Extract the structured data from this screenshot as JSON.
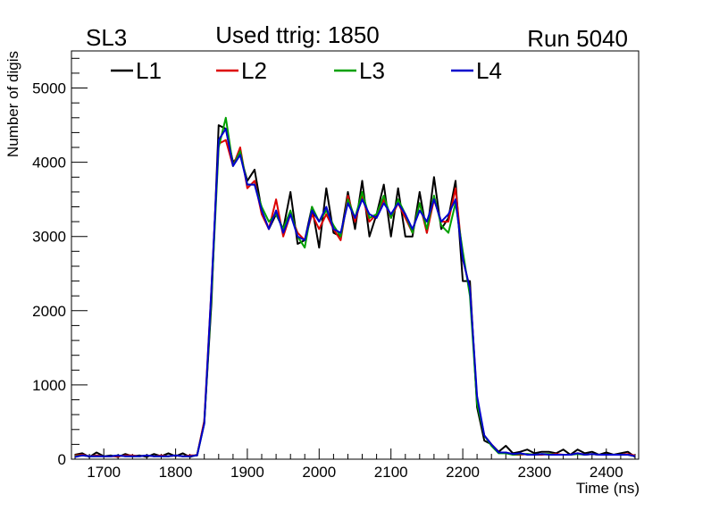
{
  "chart_data": {
    "type": "line",
    "header_left": "SL3",
    "title": "Used ttrig: 1850",
    "header_right": "Run 5040",
    "xlabel": "Time (ns)",
    "ylabel": "Number of digis",
    "xlim": [
      1655,
      2445
    ],
    "ylim": [
      0,
      5500
    ],
    "xticks": [
      1700,
      1800,
      1900,
      2000,
      2100,
      2200,
      2300,
      2400
    ],
    "yticks": [
      0,
      1000,
      2000,
      3000,
      4000,
      5000
    ],
    "x": [
      1660,
      1670,
      1680,
      1690,
      1700,
      1710,
      1720,
      1730,
      1740,
      1750,
      1760,
      1770,
      1780,
      1790,
      1800,
      1810,
      1820,
      1830,
      1840,
      1850,
      1860,
      1870,
      1880,
      1890,
      1900,
      1910,
      1920,
      1930,
      1940,
      1950,
      1960,
      1970,
      1980,
      1990,
      2000,
      2010,
      2020,
      2030,
      2040,
      2050,
      2060,
      2070,
      2080,
      2090,
      2100,
      2110,
      2120,
      2130,
      2140,
      2150,
      2160,
      2170,
      2180,
      2190,
      2200,
      2210,
      2220,
      2230,
      2240,
      2250,
      2260,
      2270,
      2280,
      2290,
      2300,
      2310,
      2320,
      2330,
      2340,
      2350,
      2360,
      2370,
      2380,
      2390,
      2400,
      2410,
      2420,
      2430,
      2440
    ],
    "legend": [
      "L1",
      "L2",
      "L3",
      "L4"
    ],
    "series": [
      {
        "name": "L1",
        "color": "#000000",
        "values": [
          60,
          80,
          30,
          90,
          40,
          50,
          30,
          70,
          40,
          50,
          30,
          70,
          40,
          80,
          40,
          80,
          30,
          60,
          500,
          2100,
          4500,
          4450,
          4000,
          4100,
          3750,
          3900,
          3350,
          3100,
          3300,
          3100,
          3600,
          2900,
          2950,
          3400,
          2850,
          3650,
          3050,
          3000,
          3600,
          3100,
          3750,
          3000,
          3300,
          3700,
          3000,
          3650,
          3000,
          3000,
          3600,
          3050,
          3800,
          3100,
          3250,
          3750,
          2400,
          2400,
          700,
          250,
          200,
          100,
          180,
          80,
          100,
          130,
          80,
          100,
          100,
          80,
          130,
          60,
          130,
          80,
          100,
          60,
          90,
          60,
          80,
          100,
          30
        ]
      },
      {
        "name": "L2",
        "color": "#dd0000",
        "values": [
          50,
          60,
          40,
          50,
          40,
          40,
          40,
          50,
          50,
          40,
          50,
          40,
          50,
          40,
          50,
          40,
          50,
          50,
          520,
          2300,
          4250,
          4300,
          3950,
          4200,
          3650,
          3750,
          3300,
          3100,
          3500,
          3000,
          3300,
          3050,
          2950,
          3300,
          3100,
          3300,
          3100,
          2950,
          3550,
          3200,
          3550,
          3200,
          3300,
          3500,
          3250,
          3450,
          3250,
          3050,
          3450,
          3050,
          3500,
          3200,
          3200,
          3650,
          2700,
          2300,
          800,
          320,
          200,
          90,
          90,
          60,
          60,
          70,
          60,
          60,
          70,
          70,
          60,
          60,
          80,
          60,
          70,
          60,
          60,
          60,
          60,
          70,
          50
        ]
      },
      {
        "name": "L3",
        "color": "#00a000",
        "values": [
          40,
          50,
          40,
          40,
          40,
          40,
          50,
          40,
          40,
          40,
          50,
          40,
          40,
          40,
          50,
          40,
          40,
          50,
          480,
          2200,
          4200,
          4600,
          3950,
          4150,
          3700,
          3700,
          3400,
          3200,
          3300,
          3100,
          3350,
          3000,
          2850,
          3400,
          3200,
          3350,
          3150,
          3000,
          3500,
          3250,
          3600,
          3250,
          3300,
          3550,
          3250,
          3500,
          3300,
          3050,
          3450,
          3100,
          3550,
          3150,
          3050,
          3450,
          2800,
          2200,
          750,
          320,
          180,
          80,
          80,
          60,
          70,
          70,
          60,
          70,
          70,
          60,
          60,
          60,
          70,
          60,
          70,
          60,
          60,
          60,
          60,
          60,
          40
        ]
      },
      {
        "name": "L4",
        "color": "#0000cc",
        "values": [
          30,
          50,
          40,
          40,
          40,
          40,
          50,
          40,
          40,
          40,
          50,
          40,
          40,
          40,
          50,
          40,
          40,
          50,
          480,
          2300,
          4300,
          4450,
          3950,
          4100,
          3700,
          3700,
          3350,
          3100,
          3350,
          3050,
          3300,
          3000,
          2950,
          3350,
          3200,
          3400,
          3100,
          3050,
          3450,
          3250,
          3500,
          3300,
          3250,
          3450,
          3300,
          3450,
          3300,
          3100,
          3350,
          3200,
          3500,
          3200,
          3300,
          3500,
          2700,
          2300,
          850,
          320,
          200,
          90,
          90,
          70,
          80,
          60,
          60,
          70,
          60,
          60,
          60,
          60,
          80,
          60,
          70,
          60,
          60,
          60,
          60,
          60,
          40
        ]
      }
    ]
  }
}
